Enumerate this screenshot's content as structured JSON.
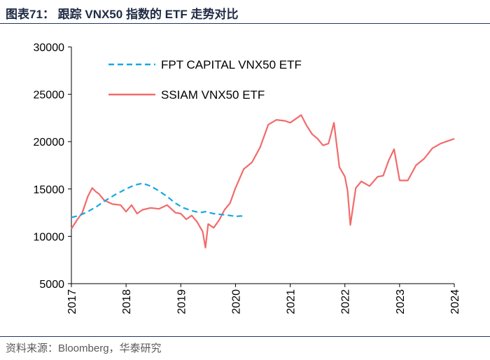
{
  "figure": {
    "title": "图表71： 跟踪 VNX50 指数的 ETF 走势对比",
    "source": "资料来源：Bloomberg，华泰研究"
  },
  "colors": {
    "ssiam": "#f26b6b",
    "fpt": "#17a8e3",
    "rule": "#1f3864",
    "axis": "#000000"
  },
  "chart_data": {
    "type": "line",
    "title": "跟踪 VNX50 指数的 ETF 走势对比",
    "xlabel": "",
    "ylabel": "",
    "xlim": [
      2017.0,
      2024.0
    ],
    "ylim": [
      5000,
      30000
    ],
    "yticks": [
      "5000",
      "10000",
      "15000",
      "20000",
      "25000",
      "30000"
    ],
    "xticks": [
      "2017",
      "2018",
      "2019",
      "2020",
      "2021",
      "2022",
      "2023",
      "2024"
    ],
    "grid": false,
    "legend_position": "top-left",
    "series": [
      {
        "name": "FPT CAPITAL VNX50 ETF",
        "style": "dashed",
        "x": [
          2017.0,
          2017.15,
          2017.3,
          2017.45,
          2017.6,
          2017.8,
          2018.0,
          2018.15,
          2018.3,
          2018.45,
          2018.6,
          2018.75,
          2018.9,
          2019.05,
          2019.2,
          2019.35,
          2019.45,
          2019.6,
          2019.75,
          2019.9,
          2020.0,
          2020.1,
          2020.15
        ],
        "values": [
          12000,
          12200,
          12600,
          13100,
          13700,
          14400,
          15000,
          15400,
          15600,
          15300,
          14800,
          14200,
          13500,
          13000,
          12700,
          12500,
          12600,
          12400,
          12300,
          12200,
          12100,
          12150,
          12100
        ]
      },
      {
        "name": "SSIAM VNX50 ETF",
        "style": "solid",
        "x": [
          2017.0,
          2017.1,
          2017.2,
          2017.3,
          2017.38,
          2017.45,
          2017.5,
          2017.6,
          2017.75,
          2017.9,
          2018.0,
          2018.1,
          2018.2,
          2018.3,
          2018.45,
          2018.6,
          2018.75,
          2018.9,
          2019.0,
          2019.1,
          2019.2,
          2019.3,
          2019.4,
          2019.45,
          2019.5,
          2019.6,
          2019.7,
          2019.8,
          2019.9,
          2020.0,
          2020.15,
          2020.3,
          2020.45,
          2020.6,
          2020.75,
          2020.9,
          2021.0,
          2021.1,
          2021.2,
          2021.3,
          2021.4,
          2021.5,
          2021.6,
          2021.7,
          2021.8,
          2021.9,
          2022.0,
          2022.05,
          2022.1,
          2022.2,
          2022.3,
          2022.45,
          2022.6,
          2022.7,
          2022.8,
          2022.9,
          2023.0,
          2023.15,
          2023.3,
          2023.45,
          2023.6,
          2023.75,
          2023.9,
          2024.0
        ],
        "values": [
          10800,
          11700,
          12500,
          14200,
          15100,
          14700,
          14500,
          13800,
          13400,
          13300,
          12600,
          13300,
          12400,
          12800,
          13000,
          12900,
          13300,
          12500,
          12400,
          11800,
          12200,
          11500,
          10500,
          8800,
          11300,
          10900,
          11700,
          12800,
          13500,
          15100,
          17100,
          17800,
          19400,
          21800,
          22300,
          22200,
          22000,
          22400,
          22800,
          21700,
          20800,
          20300,
          19600,
          19800,
          22000,
          17300,
          16300,
          14800,
          11200,
          15100,
          15800,
          15300,
          16300,
          16400,
          18000,
          19200,
          15900,
          15900,
          17500,
          18200,
          19300,
          19800,
          20100,
          20300
        ]
      }
    ]
  }
}
